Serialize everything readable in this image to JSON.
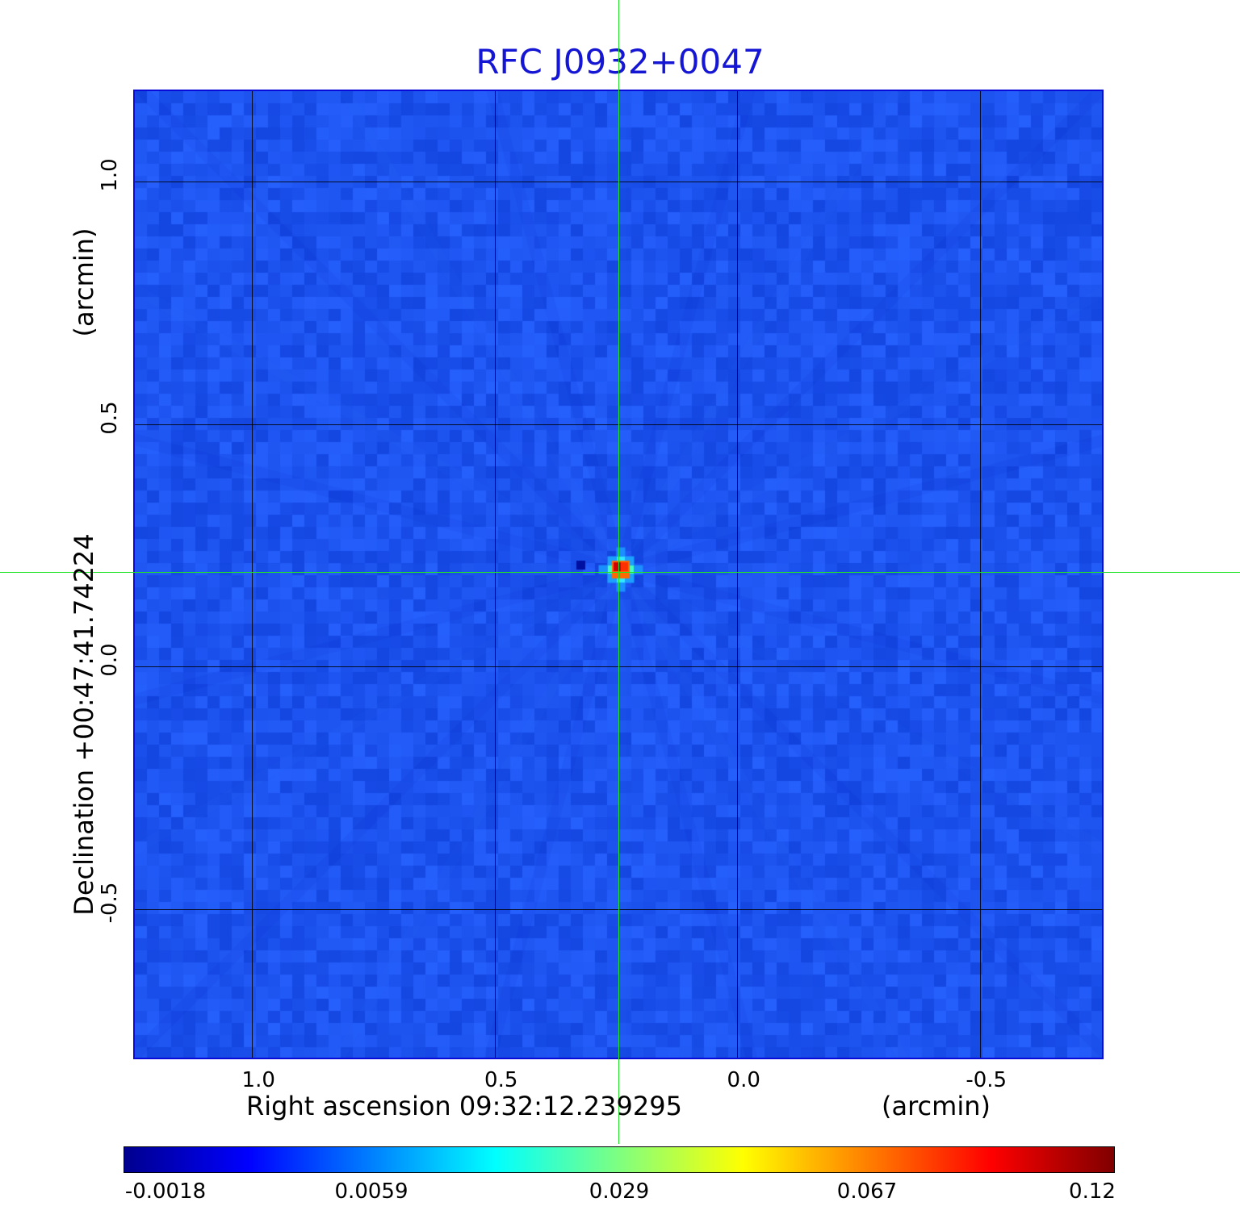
{
  "title": "RFC J0932+0047",
  "x_axis": {
    "label": "Right ascension  09:32:12.239295",
    "unit": "(arcmin)",
    "ticks": [
      "1.0",
      "0.5",
      "0.0",
      "-0.5"
    ],
    "tick_values": [
      1.0,
      0.5,
      0.0,
      -0.5
    ],
    "range": [
      1.245,
      -0.755
    ]
  },
  "y_axis": {
    "label": "Declination  +00:47:41.74224",
    "unit": "(arcmin)",
    "ticks": [
      "1.0",
      "0.5",
      "0.0",
      "-0.5"
    ],
    "tick_values": [
      1.0,
      0.5,
      0.0,
      -0.5
    ],
    "range": [
      -0.81,
      1.19
    ]
  },
  "source_peak": {
    "ra_offset_arcmin": 0.24,
    "dec_offset_arcmin": 0.2
  },
  "crosshair_color": "#22e22a",
  "colorbar": {
    "ticks": [
      "-0.0018",
      "0.0059",
      "0.029",
      "0.067",
      "0.12"
    ],
    "colormap": "jet"
  },
  "colors": {
    "title": "#1515d4",
    "background_map": "#1f52ef",
    "frame": "#0a0ad8"
  }
}
